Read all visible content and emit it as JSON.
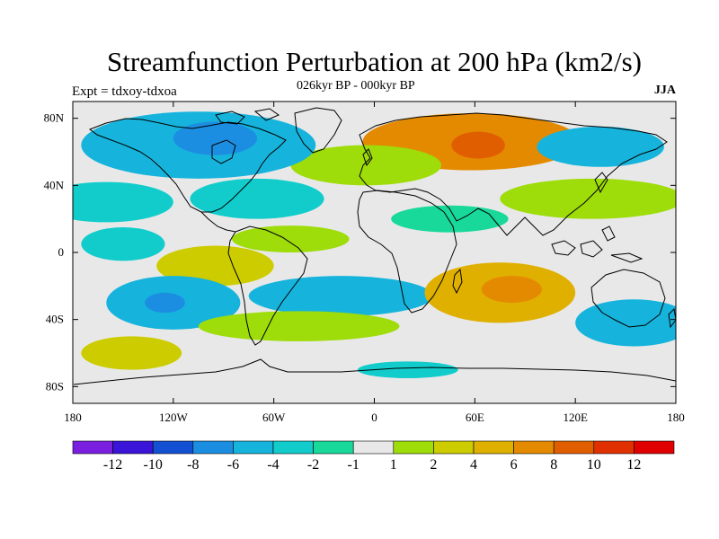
{
  "map": {
    "title": "Streamfunction Perturbation at 200 hPa (km2/s)",
    "subtitle": "026kyr BP - 000kyr BP",
    "expt_label": "Expt = tdxoy-tdxoa",
    "season": "JJA",
    "projection": "cylindrical equidistant",
    "lon_range": [
      -180,
      180
    ],
    "lat_range": [
      -90,
      90
    ],
    "lon_ticks": [
      {
        "value": -180,
        "label": "180"
      },
      {
        "value": -120,
        "label": "120W"
      },
      {
        "value": -60,
        "label": "60W"
      },
      {
        "value": 0,
        "label": "0"
      },
      {
        "value": 60,
        "label": "60E"
      },
      {
        "value": 120,
        "label": "120E"
      },
      {
        "value": 180,
        "label": "180"
      }
    ],
    "lat_ticks": [
      {
        "value": 80,
        "label": "80N"
      },
      {
        "value": 40,
        "label": "40N"
      },
      {
        "value": 0,
        "label": "0"
      },
      {
        "value": -40,
        "label": "40S"
      },
      {
        "value": -80,
        "label": "80S"
      }
    ],
    "colorbar": {
      "levels": [
        -12,
        -10,
        -8,
        -6,
        -4,
        -2,
        -1,
        1,
        2,
        4,
        6,
        8,
        10,
        12
      ],
      "labels": [
        "-12",
        "-10",
        "-8",
        "-6",
        "-4",
        "-2",
        "-1",
        "1",
        "2",
        "4",
        "6",
        "8",
        "10",
        "12"
      ],
      "colors": [
        "#7a1fe0",
        "#3a14d8",
        "#1450d2",
        "#1c8ee2",
        "#16b4dc",
        "#12cccc",
        "#18d89a",
        "#e8e8e8",
        "#9edc0a",
        "#cccc00",
        "#e0b000",
        "#e48a00",
        "#e05e00",
        "#e03000",
        "#e00000"
      ]
    },
    "features": [
      {
        "name": "nh-high-eurasia",
        "lon": 58,
        "lat": 66,
        "rx": 65,
        "ry": 17,
        "value": 8
      },
      {
        "name": "nh-high-eurasia-core",
        "lon": 62,
        "lat": 64,
        "rx": 16,
        "ry": 8,
        "value": 9
      },
      {
        "name": "nh-high-atlantic",
        "lon": -5,
        "lat": 52,
        "rx": 45,
        "ry": 12,
        "value": 2
      },
      {
        "name": "nh-low-n-america",
        "lon": -105,
        "lat": 64,
        "rx": 70,
        "ry": 20,
        "value": -4
      },
      {
        "name": "nh-low-n-america-core",
        "lon": -95,
        "lat": 68,
        "rx": 25,
        "ry": 10,
        "value": -6
      },
      {
        "name": "nh-low-e-asia",
        "lon": 135,
        "lat": 63,
        "rx": 38,
        "ry": 12,
        "value": -4
      },
      {
        "name": "nh-low-atlantic",
        "lon": -70,
        "lat": 32,
        "rx": 40,
        "ry": 12,
        "value": -2
      },
      {
        "name": "nh-low-pacific",
        "lon": -160,
        "lat": 30,
        "rx": 40,
        "ry": 12,
        "value": -2
      },
      {
        "name": "nh-high-asia",
        "lon": 130,
        "lat": 32,
        "rx": 55,
        "ry": 12,
        "value": 2
      },
      {
        "name": "trop-low-africa",
        "lon": 45,
        "lat": 20,
        "rx": 35,
        "ry": 8,
        "value": -1
      },
      {
        "name": "trop-high-e-pacific",
        "lon": -95,
        "lat": -8,
        "rx": 35,
        "ry": 12,
        "value": 4
      },
      {
        "name": "trop-high-s-america",
        "lon": -50,
        "lat": 8,
        "rx": 35,
        "ry": 8,
        "value": 2
      },
      {
        "name": "trop-low-atlantic",
        "lon": -20,
        "lat": -26,
        "rx": 55,
        "ry": 12,
        "value": -4
      },
      {
        "name": "trop-low-s-pacific",
        "lon": -150,
        "lat": 5,
        "rx": 25,
        "ry": 10,
        "value": -2
      },
      {
        "name": "sh-high-indian",
        "lon": 75,
        "lat": -24,
        "rx": 45,
        "ry": 18,
        "value": 6
      },
      {
        "name": "sh-high-indian-core",
        "lon": 82,
        "lat": -22,
        "rx": 18,
        "ry": 8,
        "value": 8
      },
      {
        "name": "sh-low-s-pacific",
        "lon": -120,
        "lat": -30,
        "rx": 40,
        "ry": 16,
        "value": -4
      },
      {
        "name": "sh-low-s-pacific-core",
        "lon": -125,
        "lat": -30,
        "rx": 12,
        "ry": 6,
        "value": -6
      },
      {
        "name": "sh-high-s-atlantic",
        "lon": -45,
        "lat": -44,
        "rx": 60,
        "ry": 9,
        "value": 2
      },
      {
        "name": "sh-high-s-pacific",
        "lon": -145,
        "lat": -60,
        "rx": 30,
        "ry": 10,
        "value": 4
      },
      {
        "name": "sh-low-s-indian",
        "lon": 155,
        "lat": -42,
        "rx": 35,
        "ry": 14,
        "value": -4
      },
      {
        "name": "sh-low-antarctic",
        "lon": 20,
        "lat": -70,
        "rx": 30,
        "ry": 5,
        "value": -2
      }
    ]
  }
}
